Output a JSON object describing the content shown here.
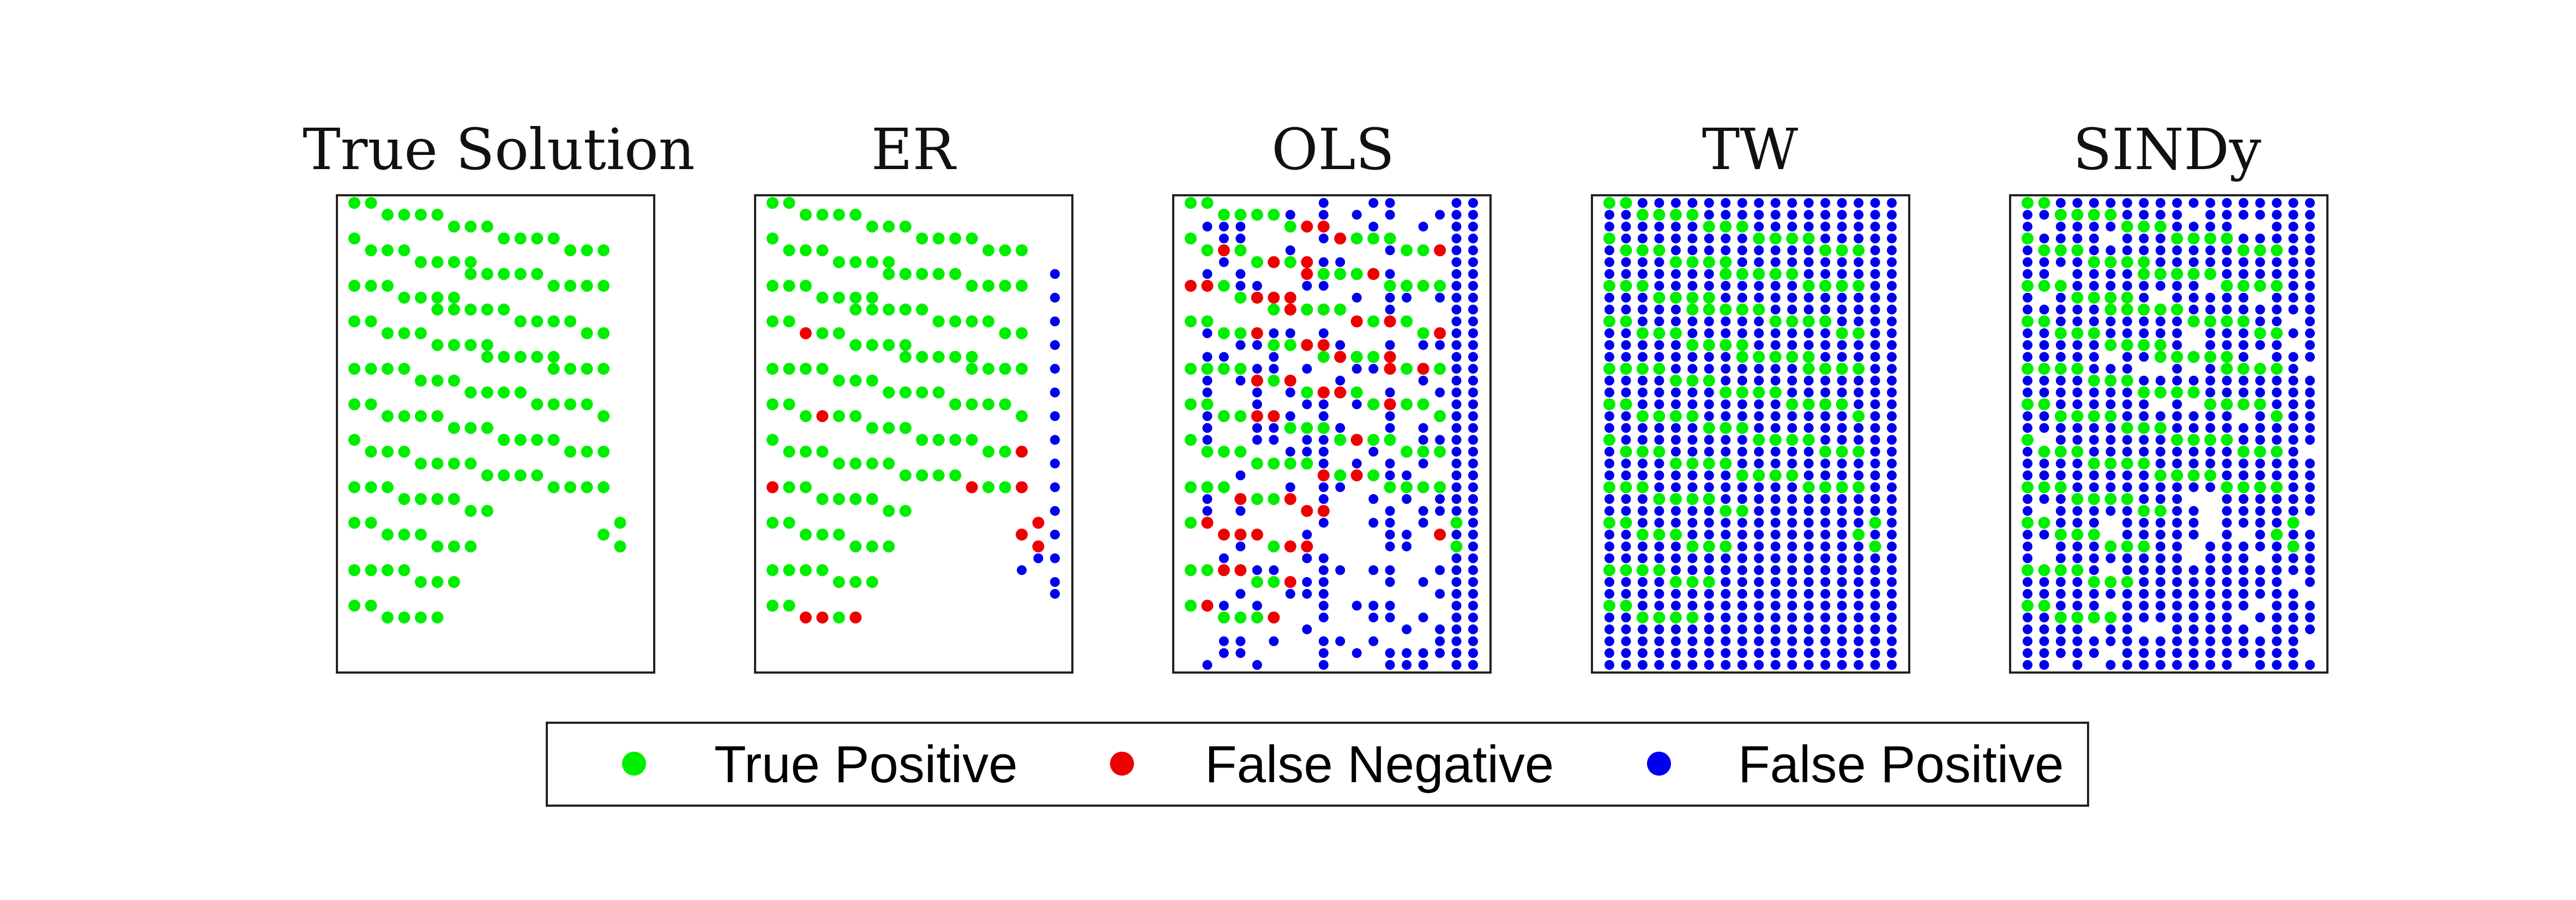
{
  "chart_data": {
    "type": "scatter",
    "description_kind": "sparsity-pattern",
    "panels": [
      {
        "title": "True Solution",
        "key": "true"
      },
      {
        "title": "ER",
        "key": "er"
      },
      {
        "title": "OLS",
        "key": "ols"
      },
      {
        "title": "TW",
        "key": "tw"
      },
      {
        "title": "SINDy",
        "key": "sindy"
      }
    ],
    "grid": {
      "columns": 18,
      "rows": 40
    },
    "legend": [
      {
        "label": "True Positive",
        "color": "#00ee00"
      },
      {
        "label": "False Negative",
        "color": "#ee0000"
      },
      {
        "label": "False Positive",
        "color": "#0000ee"
      }
    ],
    "axes_visible": false,
    "legend_position": "bottom-center"
  }
}
